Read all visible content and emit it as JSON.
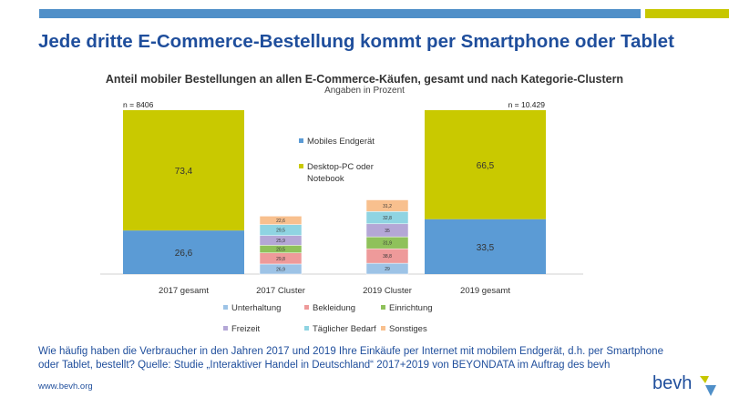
{
  "header": {
    "headline": "Jede dritte E-Commerce-Bestellung kommt per Smartphone oder Tablet",
    "accent_blue": "#4f8fc8",
    "accent_green": "#c7c700",
    "text_color": "#1f4e9c"
  },
  "chart_data": {
    "type": "bar",
    "stacked": true,
    "title": "Anteil mobiler Bestellungen an allen E-Commerce-Käufen, gesamt und nach Kategorie-Clustern",
    "subtitle": "Angaben in Prozent",
    "categories": [
      "2017 gesamt",
      "2017 Cluster",
      "2019 Cluster",
      "2019 gesamt"
    ],
    "sample_sizes": {
      "2017 gesamt": "n = 8406",
      "2019 gesamt": "n = 10.429"
    },
    "totals": [
      {
        "category": "2017 gesamt",
        "segments": [
          {
            "name": "Mobiles Endgerät",
            "value": 26.6,
            "label": "26,6"
          },
          {
            "name": "Desktop-PC oder Notebook",
            "value": 73.4,
            "label": "73,4"
          }
        ]
      },
      {
        "category": "2019 gesamt",
        "segments": [
          {
            "name": "Mobiles Endgerät",
            "value": 33.5,
            "label": "33,5"
          },
          {
            "name": "Desktop-PC oder Notebook",
            "value": 66.5,
            "label": "66,5"
          }
        ]
      }
    ],
    "clusters": [
      {
        "category": "2017 Cluster",
        "segments": [
          {
            "name": "Unterhaltung",
            "value": 26.9,
            "label": "26,9"
          },
          {
            "name": "Bekleidung",
            "value": 29.8,
            "label": "29,8"
          },
          {
            "name": "Einrichtung",
            "value": 20.5,
            "label": "20,5"
          },
          {
            "name": "Freizeit",
            "value": 25.9,
            "label": "25,9"
          },
          {
            "name": "Täglicher Bedarf",
            "value": 29.5,
            "label": "29,5"
          },
          {
            "name": "Sonstiges",
            "value": 22.6,
            "label": "22,6"
          }
        ]
      },
      {
        "category": "2019 Cluster",
        "segments": [
          {
            "name": "Unterhaltung",
            "value": 29,
            "label": "29"
          },
          {
            "name": "Bekleidung",
            "value": 38.8,
            "label": "38,8"
          },
          {
            "name": "Einrichtung",
            "value": 31.9,
            "label": "31,9"
          },
          {
            "name": "Freizeit",
            "value": 35,
            "label": "35"
          },
          {
            "name": "Täglicher Bedarf",
            "value": 32.8,
            "label": "32,8"
          },
          {
            "name": "Sonstiges",
            "value": 31.2,
            "label": "31,2"
          }
        ]
      }
    ],
    "legend_totals": [
      {
        "name": "Mobiles Endgerät",
        "color": "#5b9bd5"
      },
      {
        "name": "Desktop-PC oder Notebook",
        "color": "#c9c900"
      }
    ],
    "legend_clusters": [
      {
        "name": "Unterhaltung",
        "color": "#9dc3e6"
      },
      {
        "name": "Bekleidung",
        "color": "#ee9a9a"
      },
      {
        "name": "Einrichtung",
        "color": "#8fc15b"
      },
      {
        "name": "Freizeit",
        "color": "#b4a7d6"
      },
      {
        "name": "Täglicher Bedarf",
        "color": "#8fd4e2"
      },
      {
        "name": "Sonstiges",
        "color": "#f8c08e"
      }
    ],
    "legend_placement": "center"
  },
  "caption": "Wie häufig haben die Verbraucher in den Jahren 2017 und 2019 Ihre Einkäufe per Internet mit mobilem Endgerät, d.h. per Smartphone oder Tablet, bestellt? Quelle: Studie „Interaktiver Handel in Deutschland“ 2017+2019 von BEYONDATA im Auftrag des bevh",
  "footer": {
    "url": "www.bevh.org",
    "logo_text": "bevh"
  }
}
